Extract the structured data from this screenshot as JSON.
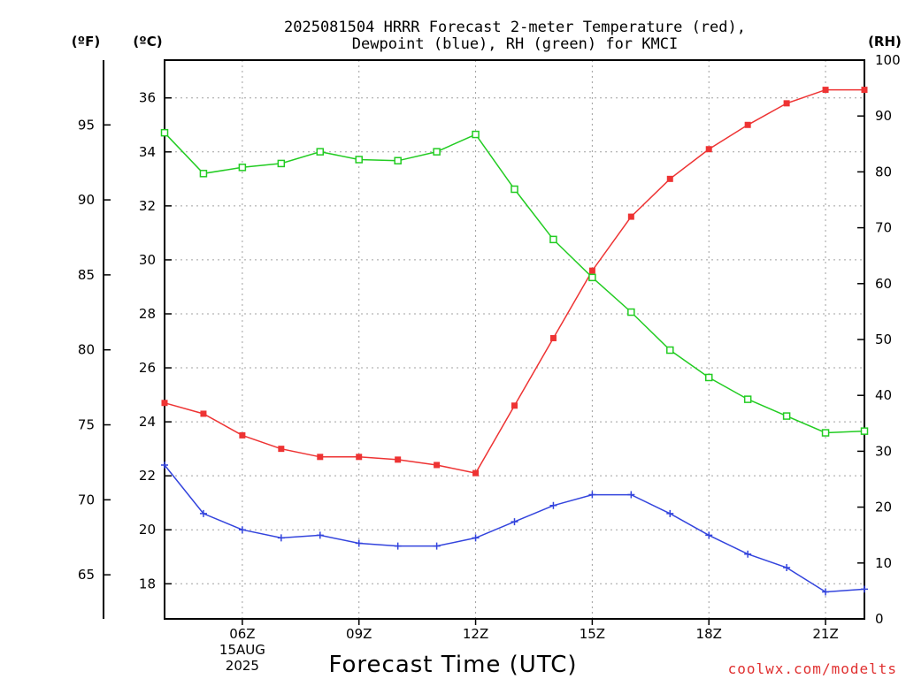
{
  "chart_data": {
    "type": "line",
    "title_line1": "2025081504 HRRR Forecast 2-meter Temperature (red),",
    "title_line2": "Dewpoint (blue), RH (green) for KMCI",
    "xlabel": "Forecast Time (UTC)",
    "left_outer_unit": "(ºF)",
    "left_inner_unit": "(ºC)",
    "right_unit": "(RH)",
    "x_hours": [
      4,
      5,
      6,
      7,
      8,
      9,
      10,
      11,
      12,
      13,
      14,
      15,
      16,
      17,
      18,
      19,
      20,
      21,
      22
    ],
    "x_range": [
      4,
      22
    ],
    "x_ticks": [
      {
        "hour": 6,
        "label": "06Z",
        "date": "15AUG",
        "year": "2025"
      },
      {
        "hour": 9,
        "label": "09Z"
      },
      {
        "hour": 12,
        "label": "12Z"
      },
      {
        "hour": 15,
        "label": "15Z"
      },
      {
        "hour": 18,
        "label": "18Z"
      },
      {
        "hour": 21,
        "label": "21Z"
      }
    ],
    "celsius_range": [
      16.7,
      37.4
    ],
    "celsius_ticks": [
      18,
      20,
      22,
      24,
      26,
      28,
      30,
      32,
      34,
      36
    ],
    "fahrenheit_ticks": [
      65,
      70,
      75,
      80,
      85,
      90,
      95
    ],
    "rh_range": [
      0,
      100
    ],
    "rh_ticks": [
      0,
      10,
      20,
      30,
      40,
      50,
      60,
      70,
      80,
      90,
      100
    ],
    "grid": true,
    "series": [
      {
        "name": "2-meter Temperature",
        "unit": "C",
        "color": "#ee3333",
        "marker": "filled-square",
        "values": [
          24.7,
          24.3,
          23.5,
          23.0,
          22.7,
          22.7,
          22.6,
          22.4,
          22.1,
          24.6,
          27.1,
          29.6,
          31.6,
          33.0,
          34.1,
          35.0,
          35.8,
          36.3,
          36.3
        ]
      },
      {
        "name": "Dewpoint",
        "unit": "C",
        "color": "#3344dd",
        "marker": "plus",
        "values": [
          22.4,
          20.6,
          20.0,
          19.7,
          19.8,
          19.5,
          19.4,
          19.4,
          19.7,
          20.3,
          20.9,
          21.3,
          21.3,
          20.6,
          19.8,
          19.1,
          18.6,
          17.7,
          17.8
        ]
      },
      {
        "name": "RH",
        "unit": "%",
        "color": "#22cc22",
        "marker": "open-square",
        "values": [
          87.0,
          79.7,
          80.8,
          81.5,
          83.6,
          82.2,
          82.0,
          83.6,
          86.7,
          76.9,
          67.9,
          61.1,
          54.9,
          48.1,
          43.2,
          39.3,
          36.3,
          33.3,
          33.6
        ]
      }
    ]
  },
  "credit": "coolwx.com/modelts",
  "colors": {
    "axis": "#000000",
    "grid": "#a0a0a0",
    "credit": "#e03030"
  }
}
